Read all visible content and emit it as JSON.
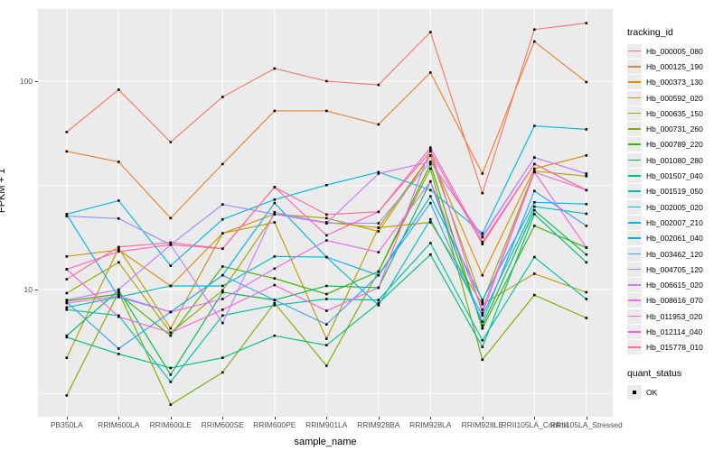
{
  "chart_data": {
    "type": "line",
    "title": "",
    "xlabel": "sample_name",
    "ylabel": "FPKM + 1",
    "y_scale": "log10",
    "ylim": [
      2.45,
      222
    ],
    "grid": true,
    "panel_background": "#ebebeb",
    "gridline_color": "#ffffff",
    "point_color": "#000000",
    "point_shape": "square",
    "y_ticks": [
      {
        "value": 10,
        "label": "10"
      },
      {
        "value": 100,
        "label": "100"
      }
    ],
    "y_minor_ticks": [
      3.162,
      31.623
    ],
    "categories": [
      "PB350LA",
      "RRIM600LA",
      "RRIM600LE",
      "RRIM600SE",
      "RRIM600PE",
      "RRIM901LA",
      "RRIM928BA",
      "RRIM928LA",
      "RRIM928LE",
      "RRII105LA_Control",
      "RRII105LA_Stressed"
    ],
    "series": [
      {
        "name": "Hb_000005_080",
        "color": "#F8766D",
        "values": [
          57,
          91,
          51,
          84,
          115,
          100,
          96,
          172,
          29,
          177,
          190
        ]
      },
      {
        "name": "Hb_000125_190",
        "color": "#EA8331",
        "values": [
          46,
          41,
          22,
          40,
          72,
          72,
          62,
          110,
          36,
          155,
          99
        ]
      },
      {
        "name": "Hb_000373_130",
        "color": "#D89000",
        "values": [
          14.4,
          15.5,
          10.4,
          18.6,
          23,
          21,
          19.8,
          44,
          11.7,
          38,
          44
        ]
      },
      {
        "name": "Hb_000592_020",
        "color": "#C09B00",
        "values": [
          4.7,
          15.8,
          6.5,
          18.6,
          21,
          5.8,
          19.8,
          21,
          8.5,
          11.9,
          9.7
        ]
      },
      {
        "name": "Hb_000635_150",
        "color": "#A3A500",
        "values": [
          9.6,
          13.5,
          6.2,
          9.9,
          23,
          22,
          19,
          44,
          8.7,
          37,
          35
        ]
      },
      {
        "name": "Hb_000731_260",
        "color": "#7CAE00",
        "values": [
          3.1,
          9.7,
          2.8,
          4.0,
          8.6,
          4.3,
          12.2,
          38,
          4.6,
          9.4,
          7.3
        ]
      },
      {
        "name": "Hb_000789_220",
        "color": "#39B600",
        "values": [
          8.8,
          9.5,
          6.0,
          12.9,
          11.3,
          9.5,
          12.2,
          40,
          6.5,
          20.2,
          15.9
        ]
      },
      {
        "name": "Hb_001080_280",
        "color": "#00BB4E",
        "values": [
          6.0,
          9.9,
          3.9,
          9.7,
          8.9,
          10.4,
          10.2,
          33,
          6.7,
          24,
          14.7
        ]
      },
      {
        "name": "Hb_001507_040",
        "color": "#00BF7D",
        "values": [
          5.9,
          4.9,
          4.2,
          4.7,
          6.0,
          5.4,
          8.6,
          14.7,
          5.3,
          23,
          13.5
        ]
      },
      {
        "name": "Hb_001519_050",
        "color": "#00C1A3",
        "values": [
          8.0,
          7.5,
          3.6,
          7.5,
          8.4,
          9.0,
          8.9,
          16.7,
          5.7,
          14.3,
          9.0
        ]
      },
      {
        "name": "Hb_002005_020",
        "color": "#00BFC4",
        "values": [
          8.2,
          9.2,
          10.4,
          10.4,
          14.4,
          14.3,
          8.4,
          21.7,
          7.5,
          25,
          23.1
        ]
      },
      {
        "name": "Hb_002007_210",
        "color": "#00BAE0",
        "values": [
          23,
          26.7,
          13.0,
          21.7,
          27,
          31.7,
          36.6,
          30,
          18.6,
          61,
          58.7
        ]
      },
      {
        "name": "Hb_002061_040",
        "color": "#00B0F6",
        "values": [
          22.9,
          9.2,
          7.8,
          11.7,
          26,
          14.3,
          11.7,
          28,
          8.9,
          26.2,
          25.7
        ]
      },
      {
        "name": "Hb_003462_120",
        "color": "#35A2FF",
        "values": [
          8.7,
          5.2,
          7.8,
          11.7,
          8.9,
          6.8,
          11.7,
          26,
          7.0,
          29.7,
          20.2
        ]
      },
      {
        "name": "Hb_004705_120",
        "color": "#9590FF",
        "values": [
          22.5,
          21.9,
          16.4,
          25.6,
          23,
          20.8,
          20.8,
          41,
          17.8,
          43,
          35.9
        ]
      },
      {
        "name": "Hb_006615_020",
        "color": "#C77CFF",
        "values": [
          8.9,
          10.0,
          16.4,
          6.9,
          23.5,
          20.8,
          36,
          41,
          18,
          43,
          36
        ]
      },
      {
        "name": "Hb_008616_070",
        "color": "#E76BF3",
        "values": [
          8.6,
          9.3,
          7.8,
          9.0,
          12.6,
          17.2,
          15.1,
          33,
          8.0,
          36.6,
          30
        ]
      },
      {
        "name": "Hb_011953_020",
        "color": "#FA62DB",
        "values": [
          12.5,
          7.4,
          6.2,
          8.0,
          10.5,
          7.9,
          10.2,
          47,
          7.7,
          36.6,
          15.9
        ]
      },
      {
        "name": "Hb_012114_040",
        "color": "#FF62BC",
        "values": [
          12.5,
          15.2,
          16.4,
          15.7,
          31,
          18.2,
          23.6,
          48,
          16.9,
          40,
          30
        ]
      },
      {
        "name": "Hb_015778_010",
        "color": "#FF6A98",
        "values": [
          11.2,
          16.0,
          16.8,
          15.7,
          31,
          22.9,
          23.6,
          46,
          16.5,
          40,
          30
        ]
      }
    ]
  },
  "legend": {
    "title": "tracking_id",
    "quant_title": "quant_status",
    "quant_items": [
      {
        "label": "OK"
      }
    ]
  }
}
